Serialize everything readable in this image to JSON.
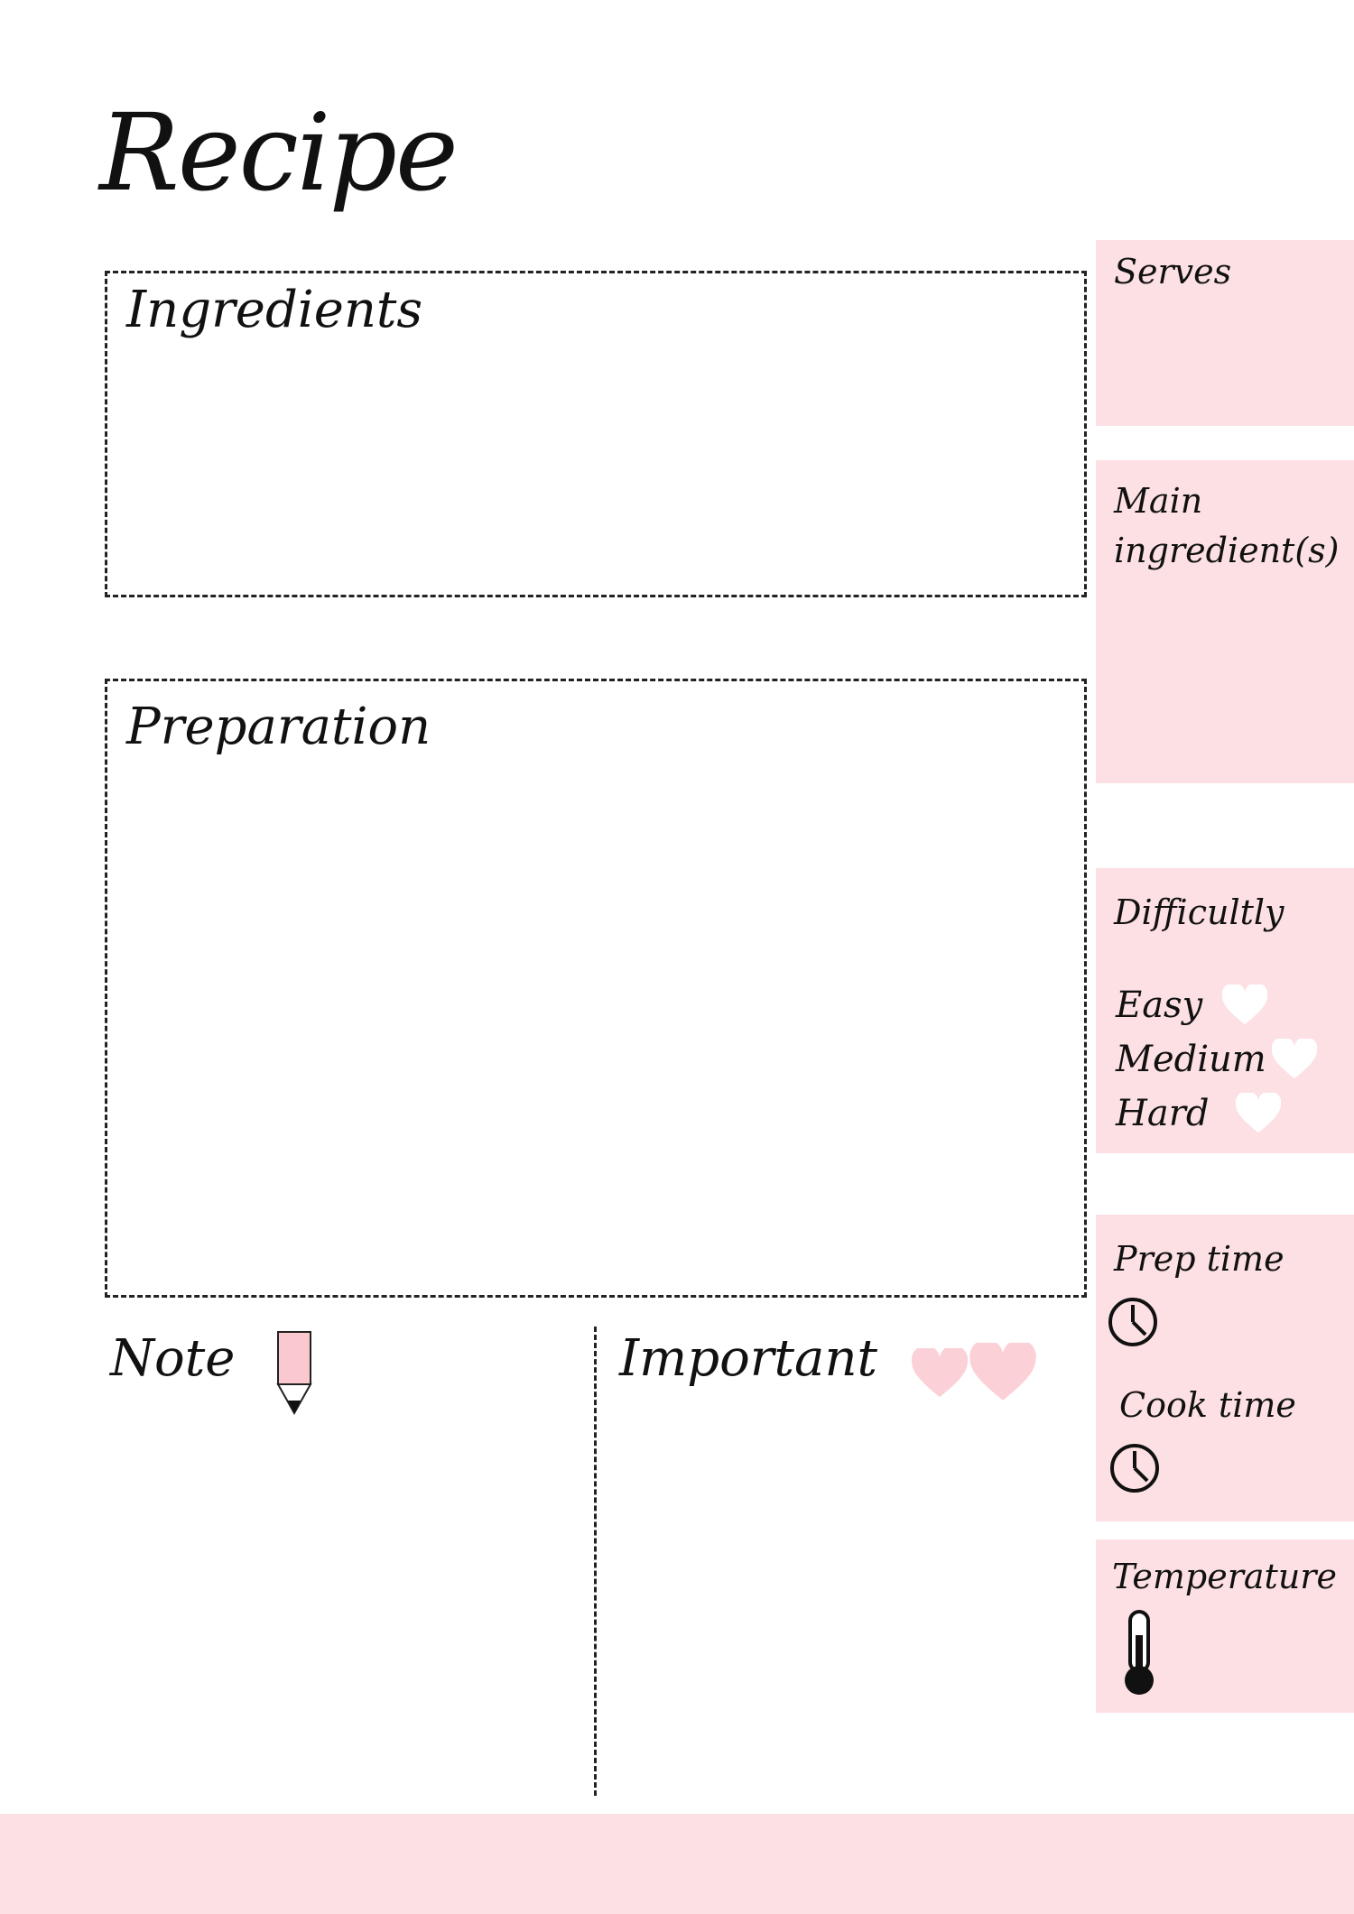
{
  "title": "Recipe",
  "sections": {
    "ingredients": "Ingredients",
    "preparation": "Preparation",
    "note": "Note",
    "important": "Important"
  },
  "sidebar": {
    "serves": "Serves",
    "main_ingredients": [
      "Main",
      "ingredient(s)"
    ],
    "difficulty": "Difficultly",
    "levels": [
      "Easy",
      "Medium",
      "Hard"
    ],
    "prep_time": "Prep time",
    "cook_time": "Cook time",
    "temperature": "Temperature"
  },
  "colors": {
    "pink_panel": "#fde0e4",
    "heart_accent": "#fbd0d6",
    "heart_white": "#ffffff",
    "pencil_body": "#f9c9cf"
  },
  "icons": {
    "pencil": "pencil-icon",
    "heart": "heart-icon",
    "clock": "clock-icon",
    "thermometer": "thermometer-icon"
  }
}
